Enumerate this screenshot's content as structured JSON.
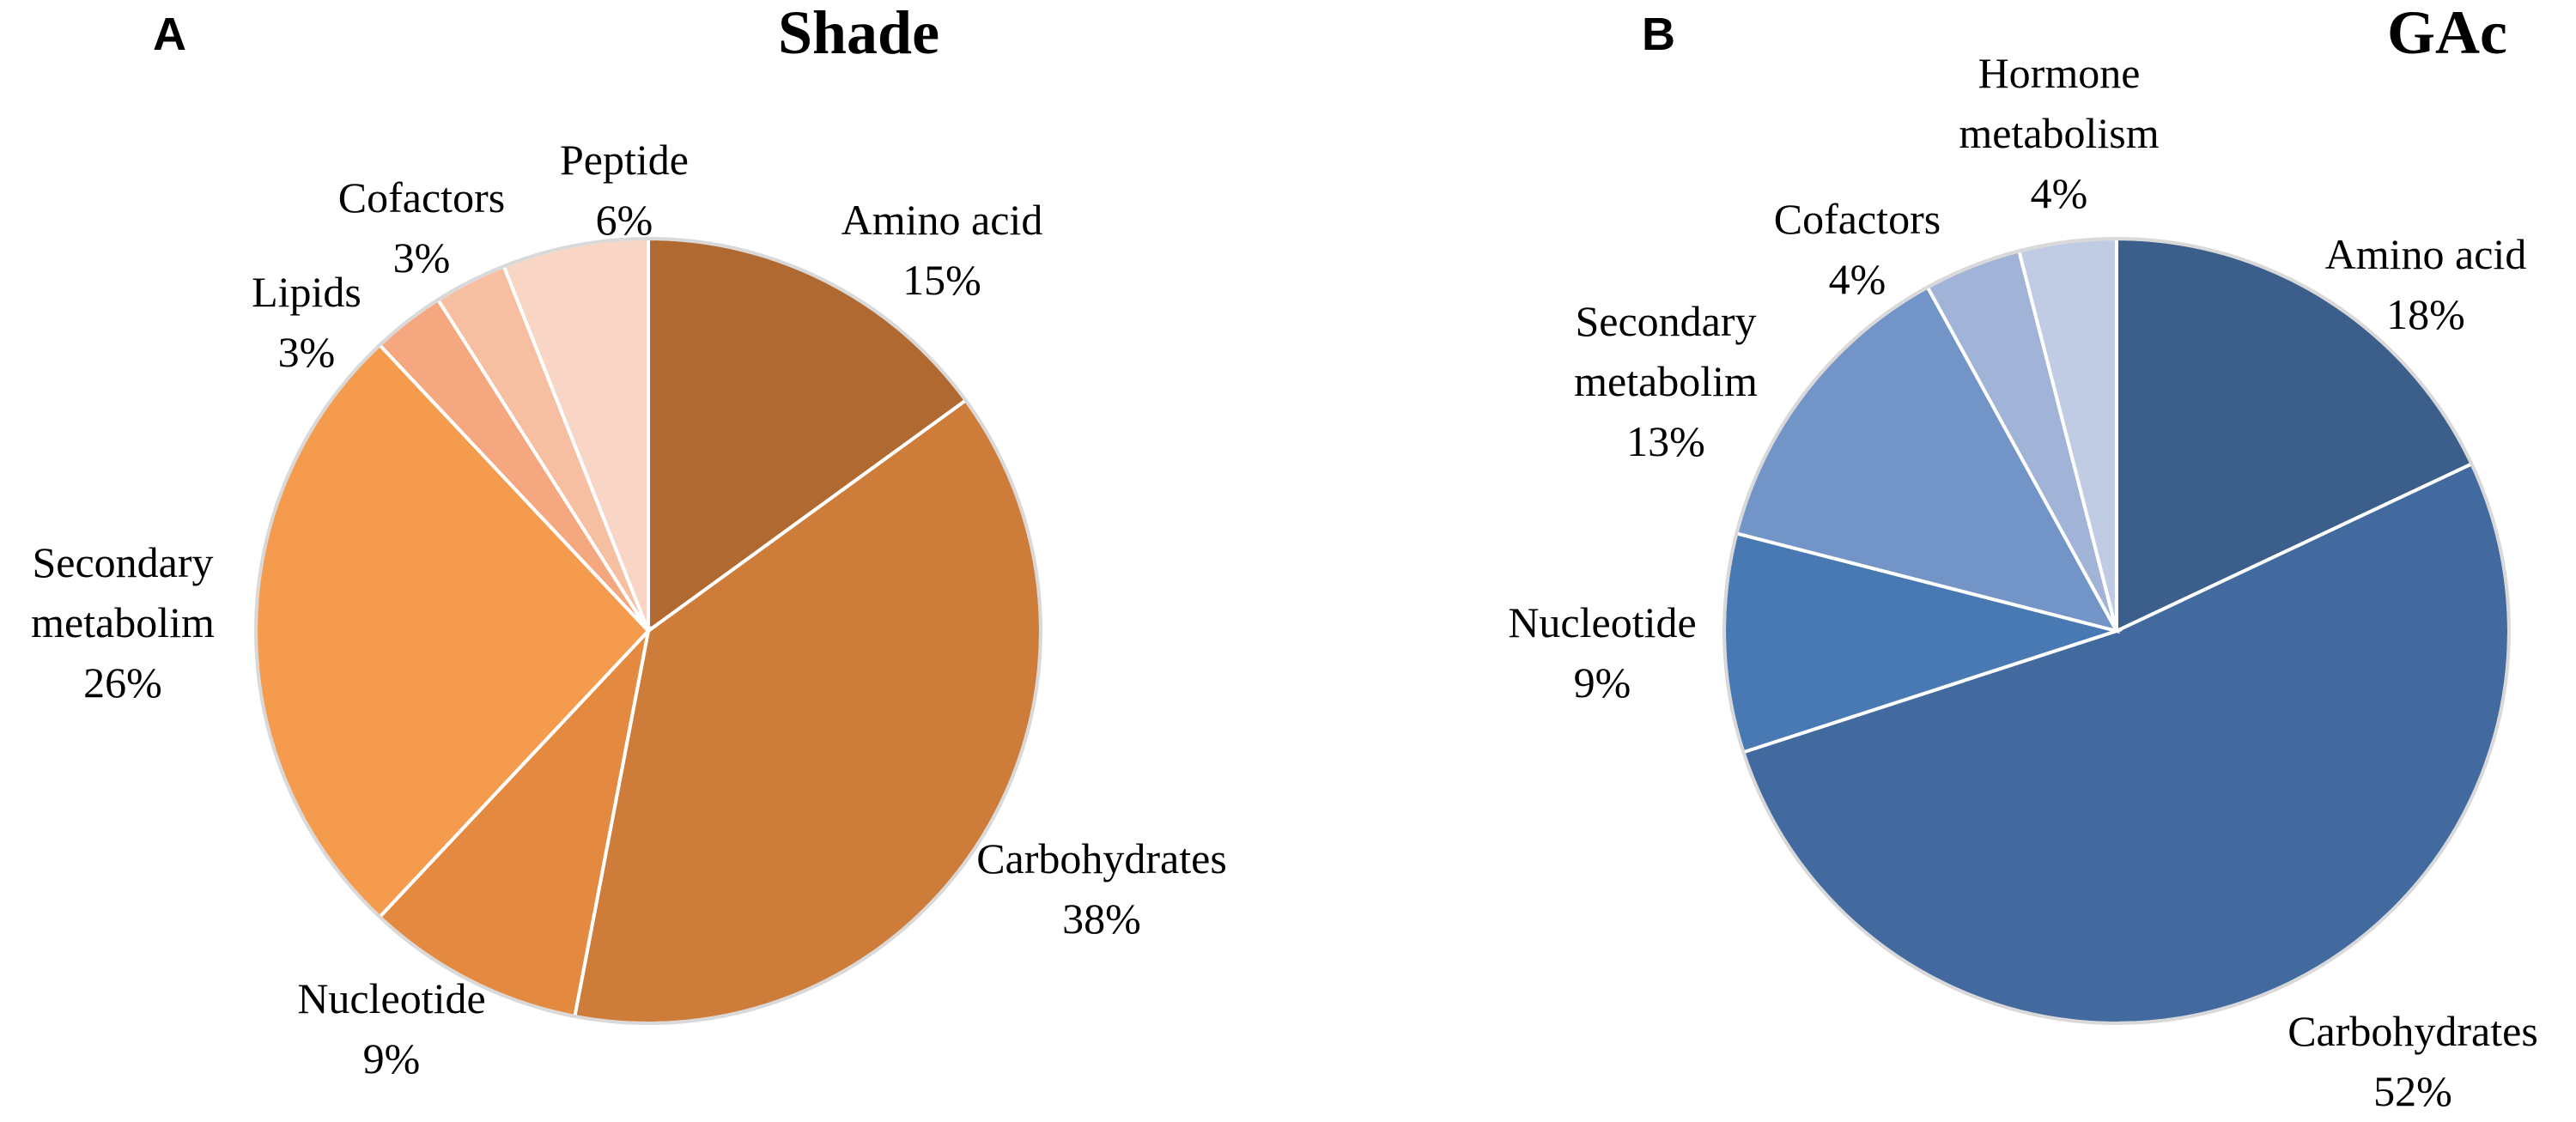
{
  "chart_data": [
    {
      "type": "pie",
      "panel": "A",
      "title": "Shade",
      "slices": [
        {
          "label": "Amino acid",
          "pct_label": "15%",
          "value": 15,
          "color": "#B06A31"
        },
        {
          "label": "Carbohydrates",
          "pct_label": "38%",
          "value": 38,
          "color": "#CE7C3A"
        },
        {
          "label": "Nucleotide",
          "pct_label": "9%",
          "value": 9,
          "color": "#E48A40"
        },
        {
          "label": "Secondary metabolim",
          "pct_label": "26%",
          "value": 26,
          "color": "#F59B4D"
        },
        {
          "label": "Lipids",
          "pct_label": "3%",
          "value": 3,
          "color": "#F5A77F"
        },
        {
          "label": "Cofactors",
          "pct_label": "3%",
          "value": 3,
          "color": "#F7BFA2"
        },
        {
          "label": "Peptide",
          "pct_label": "6%",
          "value": 6,
          "color": "#F9D5C5"
        }
      ]
    },
    {
      "type": "pie",
      "panel": "B",
      "title": "GAc",
      "slices": [
        {
          "label": "Amino acid",
          "pct_label": "18%",
          "value": 18,
          "color": "#3B5E8B"
        },
        {
          "label": "Carbohydrates",
          "pct_label": "52%",
          "value": 52,
          "color": "#426A9E"
        },
        {
          "label": "Nucleotide",
          "pct_label": "9%",
          "value": 9,
          "color": "#4879B3"
        },
        {
          "label": "Secondary metabolim",
          "pct_label": "13%",
          "value": 13,
          "color": "#7394C6"
        },
        {
          "label": "Cofactors",
          "pct_label": "4%",
          "value": 4,
          "color": "#A1B3D6"
        },
        {
          "label": "Hormone metabolism",
          "pct_label": "4%",
          "value": 4,
          "color": "#C0CCE3"
        }
      ]
    }
  ]
}
